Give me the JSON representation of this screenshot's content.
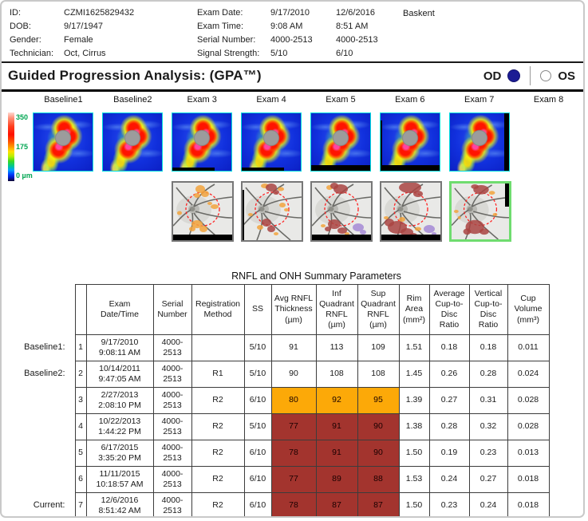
{
  "patient": {
    "id_label": "ID:",
    "id": "CZMI1625829432",
    "dob_label": "DOB:",
    "dob": "9/17/1947",
    "gender_label": "Gender:",
    "gender": "Female",
    "technician_label": "Technician:",
    "technician": "Oct, Cirrus"
  },
  "exam_info": {
    "site": "Baskent",
    "rows": [
      {
        "label": "Exam Date:",
        "v1": "9/17/2010",
        "v2": "12/6/2016"
      },
      {
        "label": "Exam Time:",
        "v1": "9:08 AM",
        "v2": "8:51 AM"
      },
      {
        "label": "Serial Number:",
        "v1": "4000-2513",
        "v2": "4000-2513"
      },
      {
        "label": "Signal Strength:",
        "v1": "5/10",
        "v2": "6/10"
      }
    ]
  },
  "title_bar": {
    "title": "Guided Progression Analysis: (GPA™)",
    "od_label": "OD",
    "os_label": "OS",
    "selected_eye": "OD",
    "radio_color": "#1c1c94"
  },
  "color_scale": {
    "top": "350",
    "mid": "175",
    "bottom": "0 µm",
    "label_color": "#00a651"
  },
  "exams": [
    {
      "label": "Baseline1",
      "has_map": true,
      "artifacts": []
    },
    {
      "label": "Baseline2",
      "has_map": true,
      "artifacts": []
    },
    {
      "label": "Exam 3",
      "has_map": true,
      "artifacts": [
        "bottom-thin"
      ]
    },
    {
      "label": "Exam 4",
      "has_map": true,
      "artifacts": [
        "bottom-thin"
      ]
    },
    {
      "label": "Exam 5",
      "has_map": true,
      "artifacts": [
        "bottom"
      ]
    },
    {
      "label": "Exam 6",
      "has_map": true,
      "artifacts": [
        "bottom",
        "left-thin"
      ]
    },
    {
      "label": "Exam 7",
      "has_map": true,
      "artifacts": [
        "right"
      ]
    },
    {
      "label": "Exam 8",
      "has_map": false,
      "artifacts": []
    }
  ],
  "fundus_maps": [
    {
      "exam": "Exam 3",
      "current": false,
      "artifacts": [
        "bottom"
      ]
    },
    {
      "exam": "Exam 4",
      "current": false,
      "artifacts": [
        "left-thin"
      ]
    },
    {
      "exam": "Exam 5",
      "current": false,
      "artifacts": [
        "bottom"
      ]
    },
    {
      "exam": "Exam 6",
      "current": false,
      "artifacts": [
        "bottom"
      ]
    },
    {
      "exam": "Exam 7",
      "current": true,
      "artifacts": [
        "right-top"
      ]
    }
  ],
  "table": {
    "title": "RNFL and ONH Summary Parameters",
    "headers": [
      "",
      "Exam\nDate/Time",
      "Serial\nNumber",
      "Registration\nMethod",
      "SS",
      "Avg RNFL\nThickness\n(µm)",
      "Inf\nQuadrant\nRNFL\n(µm)",
      "Sup\nQuadrant\nRNFL\n(µm)",
      "Rim\nArea\n(mm²)",
      "Average\nCup-to-\nDisc\nRatio",
      "Vertical\nCup-to-\nDisc\nRatio",
      "Cup\nVolume\n(mm³)"
    ],
    "flag_colors": {
      "possible": "#FCA908",
      "likely": "#A3342E"
    },
    "rows": [
      {
        "side_label": "Baseline1:",
        "num": "1",
        "date": "9/17/2010",
        "time": "9:08:11 AM",
        "serial": "4000-\n2513",
        "reg": "",
        "ss": "5/10",
        "avg": "91",
        "inf": "113",
        "sup": "109",
        "rim": "1.51",
        "acd": "0.18",
        "vcd": "0.18",
        "cup": "0.011",
        "flag": "none"
      },
      {
        "side_label": "Baseline2:",
        "num": "2",
        "date": "10/14/2011",
        "time": "9:47:05 AM",
        "serial": "4000-\n2513",
        "reg": "R1",
        "ss": "5/10",
        "avg": "90",
        "inf": "108",
        "sup": "108",
        "rim": "1.45",
        "acd": "0.26",
        "vcd": "0.28",
        "cup": "0.024",
        "flag": "none"
      },
      {
        "side_label": "",
        "num": "3",
        "date": "2/27/2013",
        "time": "2:08:10 PM",
        "serial": "4000-\n2513",
        "reg": "R2",
        "ss": "6/10",
        "avg": "80",
        "inf": "92",
        "sup": "95",
        "rim": "1.39",
        "acd": "0.27",
        "vcd": "0.31",
        "cup": "0.028",
        "flag": "possible"
      },
      {
        "side_label": "",
        "num": "4",
        "date": "10/22/2013",
        "time": "1:44:22 PM",
        "serial": "4000-\n2513",
        "reg": "R2",
        "ss": "5/10",
        "avg": "77",
        "inf": "91",
        "sup": "90",
        "rim": "1.38",
        "acd": "0.28",
        "vcd": "0.32",
        "cup": "0.028",
        "flag": "likely"
      },
      {
        "side_label": "",
        "num": "5",
        "date": "6/17/2015",
        "time": "3:35:20 PM",
        "serial": "4000-\n2513",
        "reg": "R2",
        "ss": "6/10",
        "avg": "78",
        "inf": "91",
        "sup": "90",
        "rim": "1.50",
        "acd": "0.19",
        "vcd": "0.23",
        "cup": "0.013",
        "flag": "likely"
      },
      {
        "side_label": "",
        "num": "6",
        "date": "11/11/2015",
        "time": "10:18:57 AM",
        "serial": "4000-\n2513",
        "reg": "R2",
        "ss": "6/10",
        "avg": "77",
        "inf": "89",
        "sup": "88",
        "rim": "1.53",
        "acd": "0.24",
        "vcd": "0.27",
        "cup": "0.018",
        "flag": "likely"
      },
      {
        "side_label": "Current:",
        "num": "7",
        "date": "12/6/2016",
        "time": "8:51:42 AM",
        "serial": "4000-\n2513",
        "reg": "R2",
        "ss": "6/10",
        "avg": "78",
        "inf": "87",
        "sup": "87",
        "rim": "1.50",
        "acd": "0.23",
        "vcd": "0.24",
        "cup": "0.018",
        "flag": "likely"
      }
    ]
  }
}
